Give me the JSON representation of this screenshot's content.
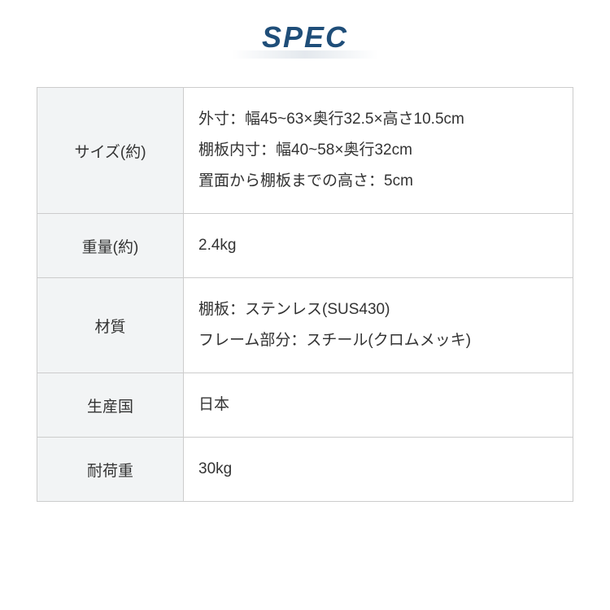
{
  "title": "SPEC",
  "table": {
    "background_color_header": "#f2f4f5",
    "background_color_cell": "#ffffff",
    "border_color": "#cccccc",
    "text_color": "#333333",
    "title_color": "#1f4e79",
    "font_size_body": 19,
    "font_size_title": 36,
    "header_column_width": 180,
    "rows": [
      {
        "label": "サイズ(約)",
        "lines": [
          "外寸：幅45~63×奥行32.5×高さ10.5cm",
          "棚板内寸：幅40~58×奥行32cm",
          "置面から棚板までの高さ：5cm"
        ]
      },
      {
        "label": "重量(約)",
        "lines": [
          "2.4kg"
        ]
      },
      {
        "label": "材質",
        "lines": [
          "棚板：ステンレス(SUS430)",
          "フレーム部分：スチール(クロムメッキ)"
        ]
      },
      {
        "label": "生産国",
        "lines": [
          "日本"
        ]
      },
      {
        "label": "耐荷重",
        "lines": [
          "30kg"
        ]
      }
    ]
  }
}
